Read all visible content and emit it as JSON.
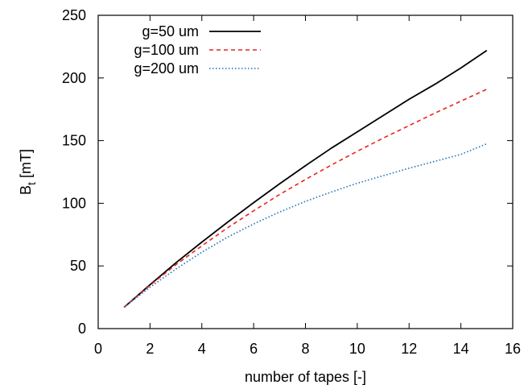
{
  "chart_data": {
    "type": "line",
    "xlabel": "number of tapes [-]",
    "ylabel_main": "B",
    "ylabel_sub": "t",
    "ylabel_tail": " [mT]",
    "xlim": [
      0,
      16
    ],
    "ylim": [
      0,
      250
    ],
    "xticks": [
      "0",
      "2",
      "4",
      "6",
      "8",
      "10",
      "12",
      "14",
      "16"
    ],
    "xtick_values": [
      0,
      2,
      4,
      6,
      8,
      10,
      12,
      14,
      16
    ],
    "yticks": [
      "0",
      "50",
      "100",
      "150",
      "200",
      "250"
    ],
    "ytick_values": [
      0,
      50,
      100,
      150,
      200,
      250
    ],
    "grid": false,
    "legend_position": "top-left",
    "series": [
      {
        "name": "g=50 um",
        "color": "#000000",
        "dash": "solid",
        "x": [
          1,
          2,
          3,
          4,
          5,
          6,
          7,
          8,
          9,
          10,
          11,
          12,
          13,
          14,
          15
        ],
        "y": [
          17,
          35,
          52.5,
          69,
          85,
          100.5,
          115.5,
          130,
          144,
          157,
          170,
          183,
          195,
          208,
          222
        ]
      },
      {
        "name": "g=100 um",
        "color": "#e8251a",
        "dash": "dashed",
        "x": [
          1,
          2,
          3,
          4,
          5,
          6,
          7,
          8,
          9,
          10,
          11,
          12,
          13,
          14,
          15
        ],
        "y": [
          17,
          34.5,
          51,
          66,
          80.5,
          94,
          107,
          119,
          130.5,
          141.5,
          152,
          162,
          172,
          181.5,
          191
        ]
      },
      {
        "name": "g=200 um",
        "color": "#1f6fb4",
        "dash": "dotted",
        "x": [
          1,
          2,
          3,
          4,
          5,
          6,
          7,
          8,
          9,
          10,
          11,
          12,
          13,
          14,
          15
        ],
        "y": [
          17,
          33,
          47.5,
          61,
          73,
          83.5,
          93,
          101.5,
          109,
          116,
          122,
          128,
          133.5,
          139,
          147.5
        ]
      }
    ]
  }
}
